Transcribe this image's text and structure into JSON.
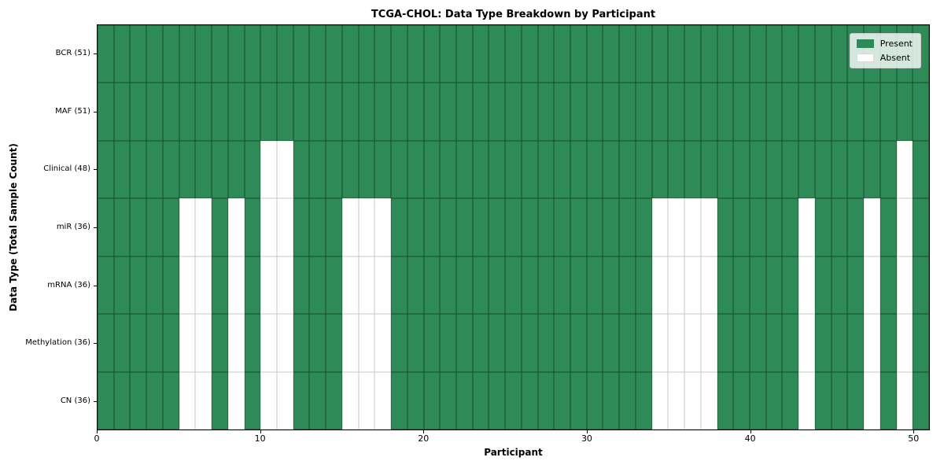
{
  "chart_data": {
    "type": "heatmap",
    "title": "TCGA-CHOL: Data Type Breakdown by Participant",
    "xlabel": "Participant",
    "ylabel": "Data Type (Total Sample Count)",
    "n_participants": 51,
    "xlim": [
      0,
      51
    ],
    "x_ticks": [
      0,
      10,
      20,
      30,
      40,
      50
    ],
    "grid": true,
    "legend_position": "upper right",
    "colors": {
      "present": "#2e8b57",
      "absent": "#ffffff"
    },
    "legend": [
      {
        "label": "Present",
        "color": "#2e8b57"
      },
      {
        "label": "Absent",
        "color": "#ffffff"
      }
    ],
    "rows": [
      {
        "label": "BCR (51)",
        "present_count": 51,
        "absent_participants": []
      },
      {
        "label": "MAF (51)",
        "present_count": 51,
        "absent_participants": []
      },
      {
        "label": "Clinical (48)",
        "present_count": 48,
        "absent_participants": [
          10,
          11,
          49
        ]
      },
      {
        "label": "miR (36)",
        "present_count": 36,
        "absent_participants": [
          5,
          6,
          8,
          10,
          11,
          15,
          16,
          17,
          34,
          35,
          36,
          37,
          43,
          47,
          49
        ]
      },
      {
        "label": "mRNA (36)",
        "present_count": 36,
        "absent_participants": [
          5,
          6,
          8,
          10,
          11,
          15,
          16,
          17,
          34,
          35,
          36,
          37,
          43,
          47,
          49
        ]
      },
      {
        "label": "Methylation (36)",
        "present_count": 36,
        "absent_participants": [
          5,
          6,
          8,
          10,
          11,
          15,
          16,
          17,
          34,
          35,
          36,
          37,
          43,
          47,
          49
        ]
      },
      {
        "label": "CN (36)",
        "present_count": 36,
        "absent_participants": [
          5,
          6,
          8,
          10,
          11,
          15,
          16,
          17,
          34,
          35,
          36,
          37,
          43,
          47,
          49
        ]
      }
    ]
  }
}
